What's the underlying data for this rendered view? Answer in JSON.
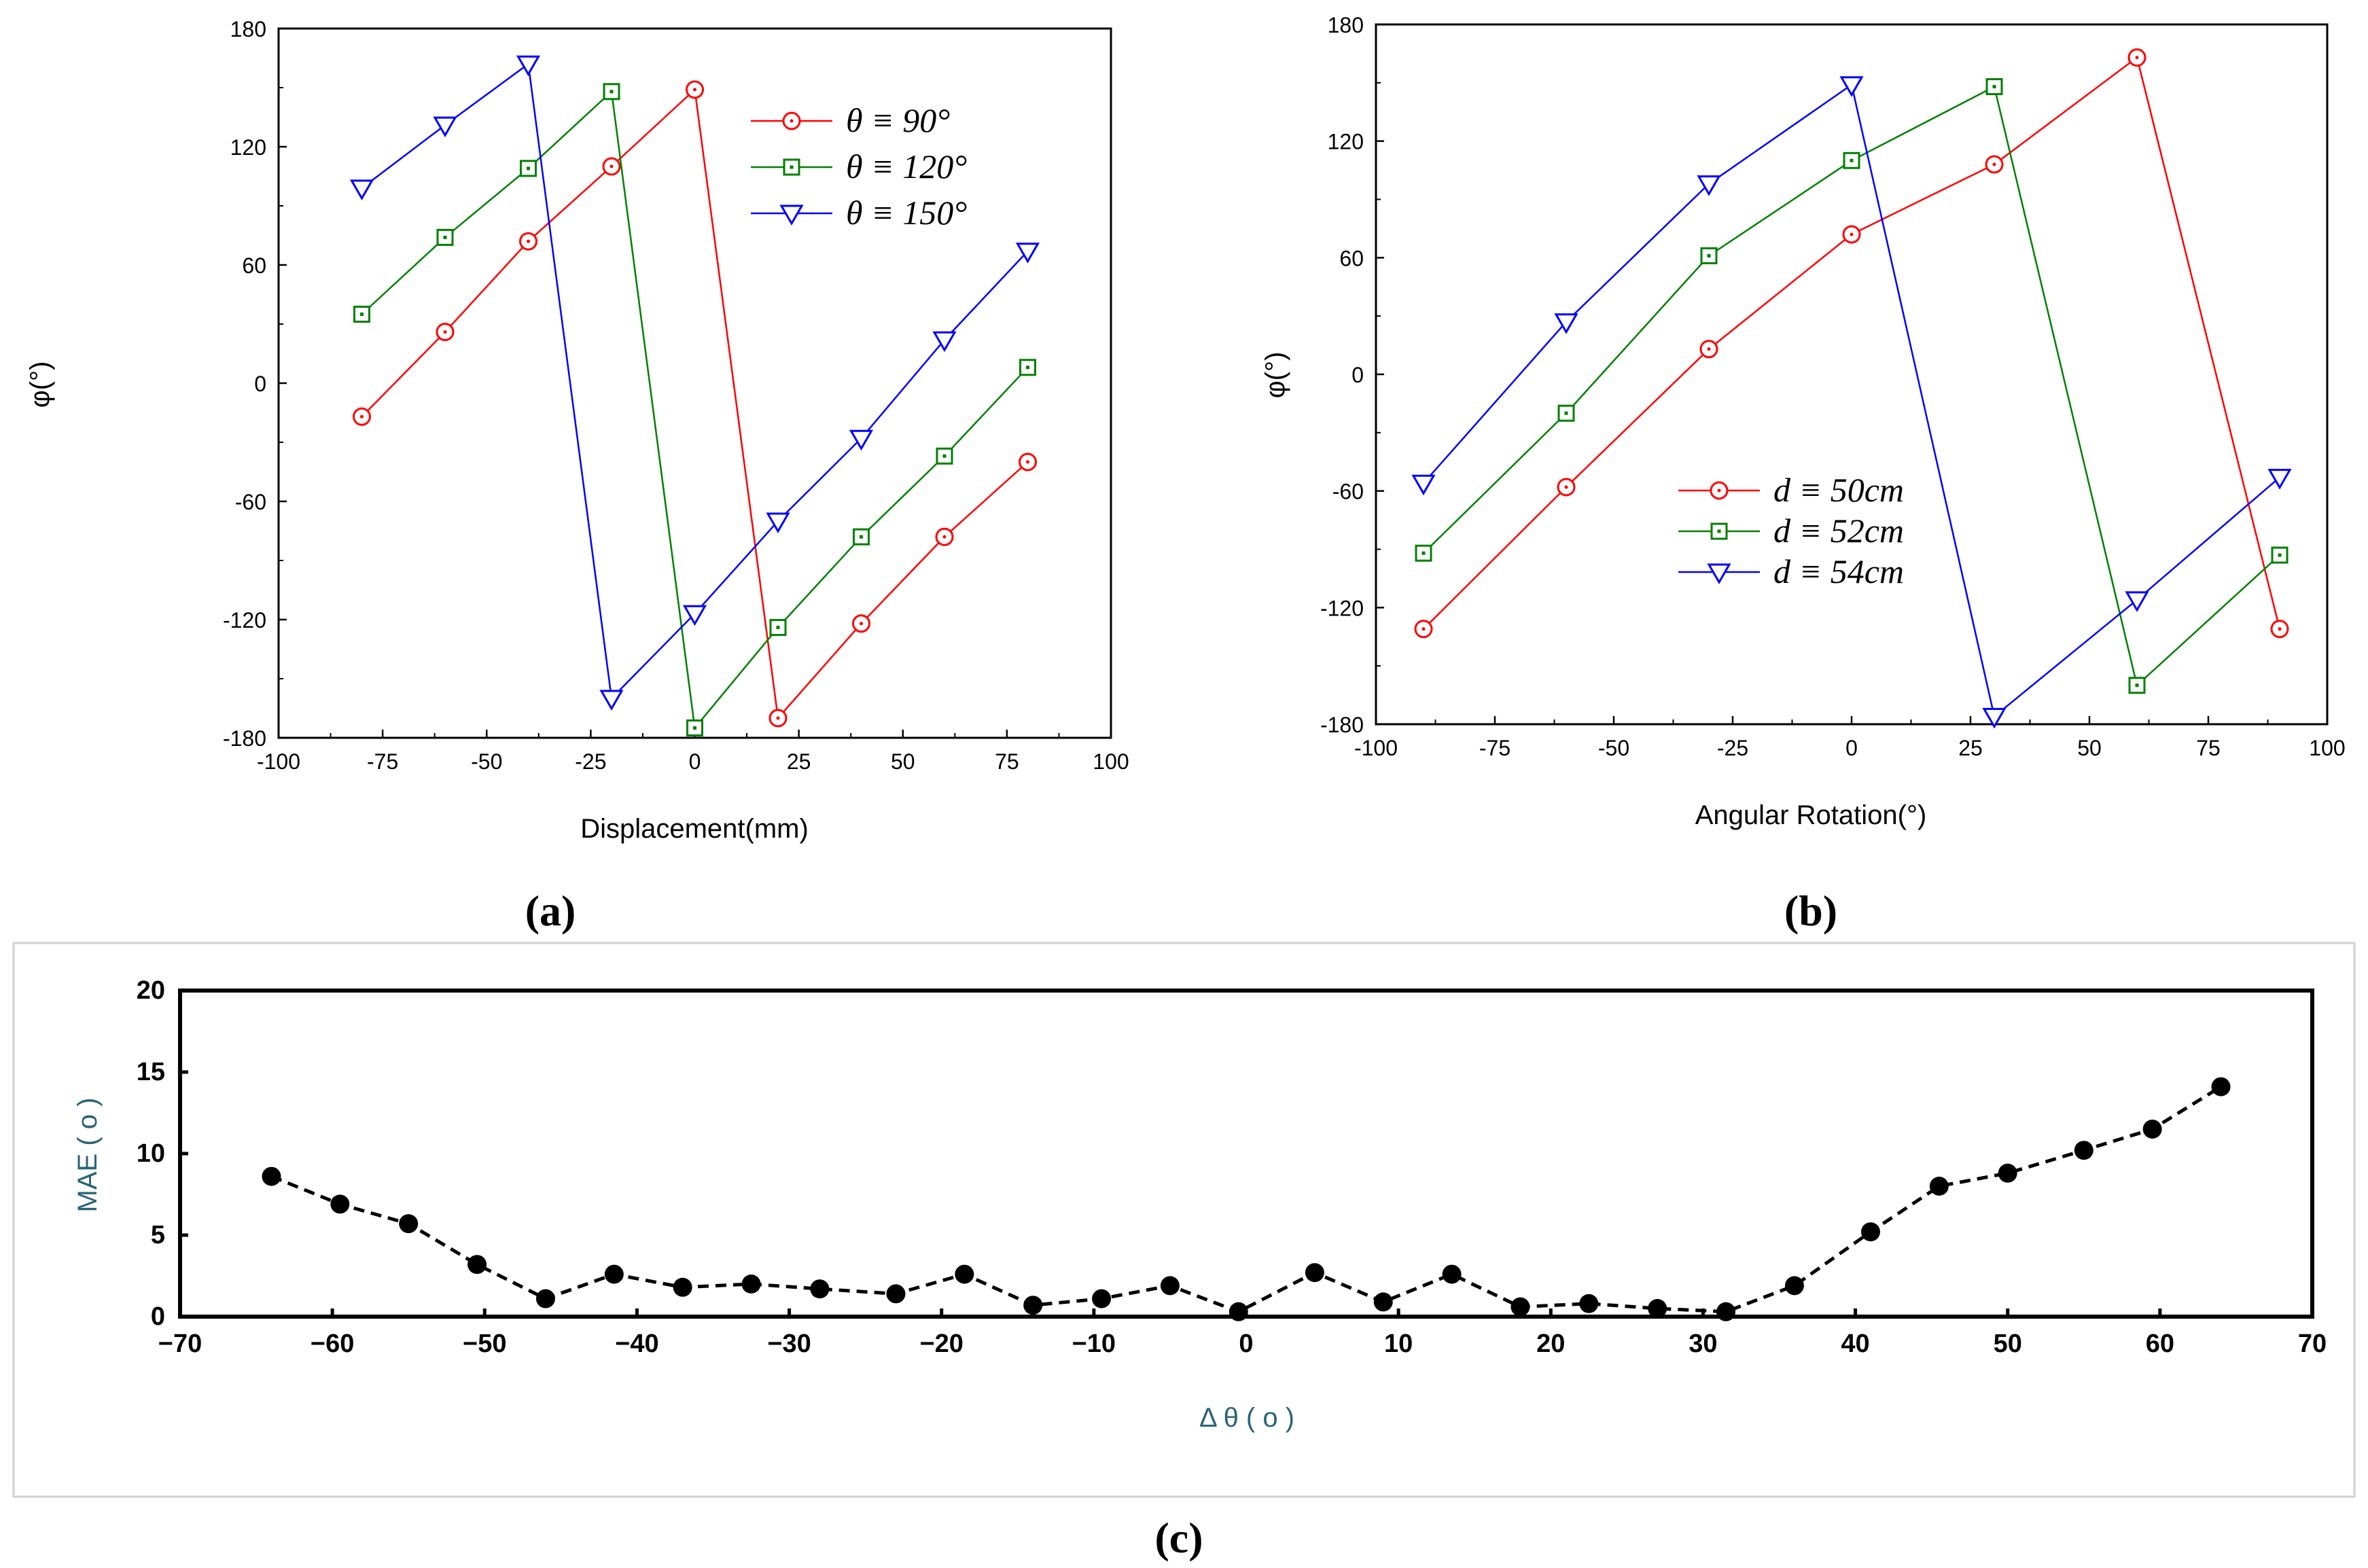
{
  "chart_data": [
    {
      "id": "a",
      "type": "line",
      "caption": "(a)",
      "xlabel": "Displacement(mm)",
      "ylabel": "φ(°)",
      "xlim": [
        -100,
        100
      ],
      "ylim": [
        -180,
        180
      ],
      "xticks": [
        -100,
        -75,
        -50,
        -25,
        0,
        25,
        50,
        75,
        100
      ],
      "yticks": [
        -180,
        -120,
        -60,
        0,
        60,
        120,
        180
      ],
      "legend_position": "top-right",
      "series": [
        {
          "name": "θ ≡ 90°",
          "color": "#ff0000",
          "marker": "circle",
          "x": [
            -80,
            -60,
            -40,
            -20,
            0,
            20,
            40,
            60,
            80
          ],
          "y": [
            -17,
            26,
            72,
            110,
            149,
            -170,
            -122,
            -78,
            -40
          ]
        },
        {
          "name": "θ ≡ 120°",
          "color": "#008000",
          "marker": "square",
          "x": [
            -80,
            -60,
            -40,
            -20,
            0,
            20,
            40,
            60,
            80
          ],
          "y": [
            35,
            74,
            109,
            148,
            -175,
            -124,
            -78,
            -37,
            8
          ]
        },
        {
          "name": "θ ≡ 150°",
          "color": "#0000ff",
          "marker": "triangle-down",
          "x": [
            -80,
            -60,
            -40,
            -20,
            0,
            20,
            40,
            60,
            80
          ],
          "y": [
            99,
            131,
            162,
            -160,
            -117,
            -70,
            -28,
            22,
            67
          ]
        }
      ]
    },
    {
      "id": "b",
      "type": "line",
      "caption": "(b)",
      "xlabel": "Angular Rotation(°)",
      "ylabel": "φ(°)",
      "xlim": [
        -100,
        100
      ],
      "ylim": [
        -180,
        180
      ],
      "xticks": [
        -100,
        -75,
        -50,
        -25,
        0,
        25,
        50,
        75,
        100
      ],
      "yticks": [
        -180,
        -120,
        -60,
        0,
        60,
        120,
        180
      ],
      "legend_position": "bottom-center",
      "series": [
        {
          "name": "d ≡ 50cm",
          "color": "#ff0000",
          "marker": "circle",
          "x": [
            -90,
            -60,
            -30,
            0,
            30,
            60,
            90
          ],
          "y": [
            -131,
            -58,
            13,
            72,
            108,
            163,
            -131
          ]
        },
        {
          "name": "d ≡ 52cm",
          "color": "#008000",
          "marker": "square",
          "x": [
            -90,
            -60,
            -30,
            0,
            30,
            60,
            90
          ],
          "y": [
            -92,
            -20,
            61,
            110,
            148,
            -160,
            -93
          ]
        },
        {
          "name": "d ≡ 54cm",
          "color": "#0000ff",
          "marker": "triangle-down",
          "x": [
            -90,
            -60,
            -30,
            0,
            30,
            60,
            90
          ],
          "y": [
            -56,
            27,
            98,
            149,
            -176,
            -116,
            -53
          ]
        }
      ]
    },
    {
      "id": "c",
      "type": "line",
      "caption": "(c)",
      "xlabel": "Δ θ ( o )",
      "ylabel": "MAE ( o )",
      "xlim": [
        -70,
        70
      ],
      "ylim": [
        0,
        20
      ],
      "xticks": [
        -70,
        -60,
        -50,
        -40,
        -30,
        -20,
        -10,
        0,
        10,
        20,
        30,
        40,
        50,
        60,
        70
      ],
      "yticks": [
        0,
        5,
        10,
        15,
        20
      ],
      "series": [
        {
          "name": "MAE",
          "color": "#000000",
          "marker": "filled-circle",
          "linestyle": "dashed",
          "x": [
            -64,
            -59.5,
            -55,
            -50.5,
            -46,
            -41.5,
            -37,
            -32.5,
            -28,
            -23,
            -18.5,
            -14,
            -9.5,
            -5,
            -0.5,
            4.5,
            9,
            13.5,
            18,
            22.5,
            27,
            31.5,
            36,
            41,
            45.5,
            50,
            55,
            59.5,
            64
          ],
          "y": [
            8.6,
            6.9,
            5.7,
            3.2,
            1.1,
            2.6,
            1.8,
            2.0,
            1.7,
            1.4,
            2.6,
            0.7,
            1.1,
            1.9,
            0.3,
            2.7,
            0.9,
            2.6,
            0.6,
            0.8,
            0.5,
            0.3,
            1.9,
            5.2,
            8.0,
            8.8,
            10.2,
            11.5,
            14.1
          ]
        }
      ]
    }
  ]
}
